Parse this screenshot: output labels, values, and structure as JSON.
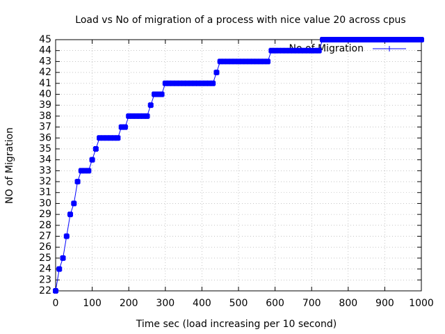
{
  "chart_data": {
    "type": "line",
    "title": "Load vs No of migration of a process with nice value 20 across cpus",
    "x_label": "Time sec (load increasing per 10 second)",
    "y_label": "NO of Migration",
    "x": [
      0,
      10,
      20,
      30,
      40,
      50,
      60,
      70,
      80,
      90,
      100,
      110,
      120,
      130,
      140,
      150,
      160,
      170,
      180,
      190,
      200,
      210,
      220,
      230,
      240,
      250,
      260,
      270,
      280,
      290,
      300,
      310,
      320,
      330,
      340,
      350,
      360,
      370,
      380,
      390,
      400,
      410,
      420,
      430,
      440,
      450,
      460,
      470,
      480,
      490,
      500,
      510,
      520,
      530,
      540,
      550,
      560,
      570,
      580,
      590,
      600,
      610,
      620,
      630,
      640,
      650,
      660,
      670,
      680,
      690,
      700,
      710,
      720,
      730,
      740,
      750,
      760,
      770,
      780,
      790,
      800,
      810,
      820,
      830,
      840,
      850,
      860,
      870,
      880,
      890,
      900,
      910,
      920,
      930,
      940,
      950,
      960,
      970,
      980,
      990,
      1000
    ],
    "series": [
      {
        "name": "No of Migration",
        "color": "#0000ff",
        "values": [
          22,
          24,
          25,
          27,
          29,
          30,
          32,
          33,
          33,
          33,
          34,
          35,
          36,
          36,
          36,
          36,
          36,
          36,
          37,
          37,
          38,
          38,
          38,
          38,
          38,
          38,
          39,
          40,
          40,
          40,
          41,
          41,
          41,
          41,
          41,
          41,
          41,
          41,
          41,
          41,
          41,
          41,
          41,
          41,
          42,
          43,
          43,
          43,
          43,
          43,
          43,
          43,
          43,
          43,
          43,
          43,
          43,
          43,
          43,
          44,
          44,
          44,
          44,
          44,
          44,
          44,
          44,
          44,
          44,
          44,
          44,
          44,
          44,
          45,
          45,
          45,
          45,
          45,
          45,
          45,
          45,
          45,
          45,
          45,
          45,
          45,
          45,
          45,
          45,
          45,
          45,
          45,
          45,
          45,
          45,
          45,
          45,
          45,
          45,
          45,
          45
        ]
      }
    ],
    "xlim": [
      0,
      1000
    ],
    "ylim": [
      22,
      45
    ],
    "xticks": [
      0,
      100,
      200,
      300,
      400,
      500,
      600,
      700,
      800,
      900,
      1000
    ],
    "yticks": [
      22,
      23,
      24,
      25,
      26,
      27,
      28,
      29,
      30,
      31,
      32,
      33,
      34,
      35,
      36,
      37,
      38,
      39,
      40,
      41,
      42,
      43,
      44,
      45
    ],
    "grid": true,
    "legend": "top-right"
  }
}
